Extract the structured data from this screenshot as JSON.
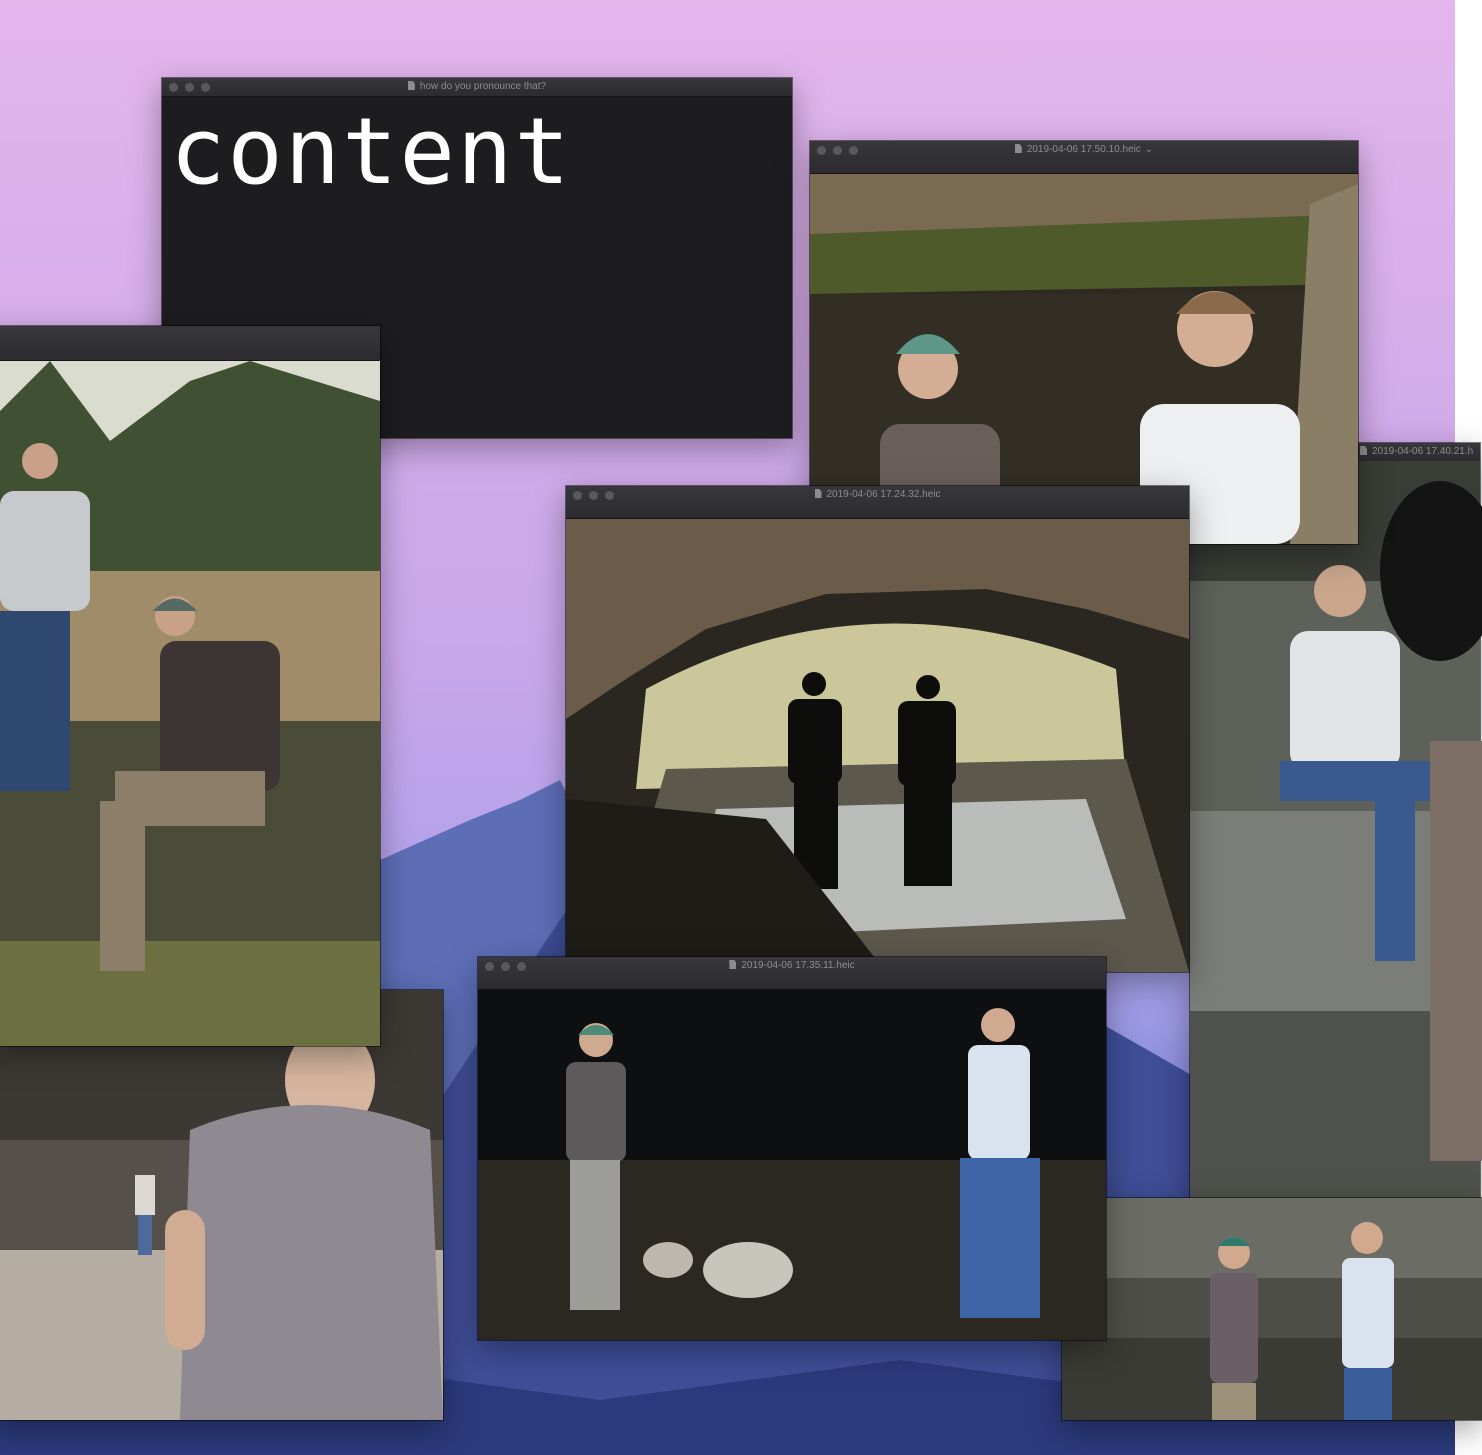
{
  "desktop": {
    "wallpaper": "mountain-dusk"
  },
  "windows": {
    "note": {
      "title": "how do you pronounce that?",
      "text": "content"
    },
    "photo_a": {
      "title": "2019-04-06 17.50.10.heic",
      "has_dropdown": true,
      "scene": "two men at cave ledge, mossy rock overhang"
    },
    "photo_b": {
      "title": "",
      "scene": "two men standing and sitting in grassy woodland clearing"
    },
    "photo_c": {
      "title": "2019-04-06 17.24.32.heic",
      "scene": "two silhouettes in cave mouth over stream"
    },
    "photo_d": {
      "title": "2019-04-06 17.35.11.heic",
      "scene": "two men inside dark cave on rocks"
    },
    "photo_e": {
      "title": "2019-04-06 17.40.21.h",
      "scene": "man sitting on boulder"
    },
    "photo_f": {
      "title": "",
      "scene": "blurred view of man walking toward cave"
    },
    "photo_g": {
      "title": "",
      "scene": "two men smiling in front of rock wall"
    }
  },
  "icons": {
    "window_controls": "traffic-light-icons",
    "file": "document-icon",
    "dropdown": "chevron-down-icon"
  },
  "colors": {
    "window_bg": "#1d1c1f",
    "titlebar": "#333236",
    "title_text": "#8d8c90"
  }
}
